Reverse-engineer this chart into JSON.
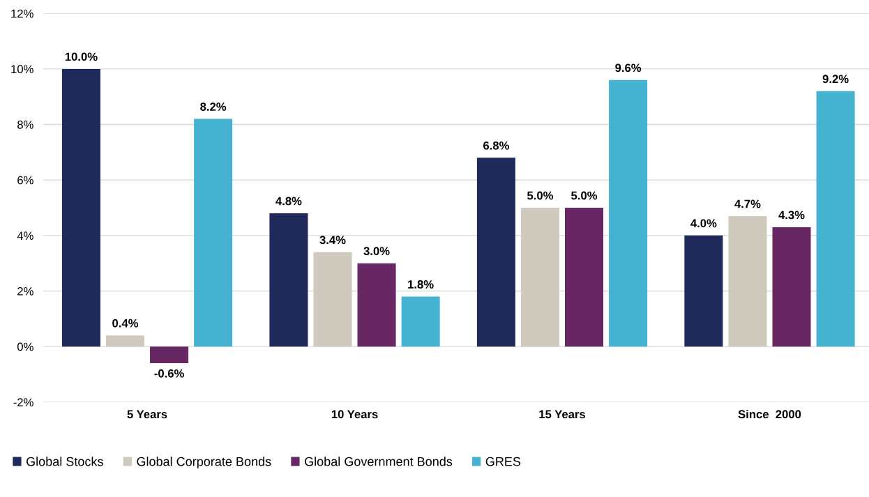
{
  "chart_data": {
    "type": "bar",
    "categories": [
      "5 Years",
      "10 Years",
      "15 Years",
      "Since  2000"
    ],
    "series": [
      {
        "name": "Global Stocks",
        "color": "#1f2a5a",
        "values": [
          10.0,
          4.8,
          6.8,
          4.0
        ],
        "value_labels": [
          "10.0%",
          "4.8%",
          "6.8%",
          "4.0%"
        ]
      },
      {
        "name": "Global Corporate Bonds",
        "color": "#d0c9bd",
        "values": [
          0.4,
          3.4,
          5.0,
          4.7
        ],
        "value_labels": [
          "0.4%",
          "3.4%",
          "5.0%",
          "4.7%"
        ]
      },
      {
        "name": "Global Government Bonds",
        "color": "#672762",
        "values": [
          -0.6,
          3.0,
          5.0,
          4.3
        ],
        "value_labels": [
          "-0.6%",
          "3.0%",
          "5.0%",
          "4.3%"
        ]
      },
      {
        "name": "GRES",
        "color": "#45b3d0",
        "values": [
          8.2,
          1.8,
          9.6,
          9.2
        ],
        "value_labels": [
          "8.2%",
          "1.8%",
          "9.6%",
          "9.2%"
        ]
      }
    ],
    "ylim": [
      -2,
      12
    ],
    "yticks": [
      {
        "value": -2,
        "label": "-2%"
      },
      {
        "value": 0,
        "label": "0%"
      },
      {
        "value": 2,
        "label": "2%"
      },
      {
        "value": 4,
        "label": "4%"
      },
      {
        "value": 6,
        "label": "6%"
      },
      {
        "value": 8,
        "label": "8%"
      },
      {
        "value": 10,
        "label": "10%"
      },
      {
        "value": 12,
        "label": "12%"
      }
    ],
    "grid": "y",
    "legend": "bottom left"
  }
}
